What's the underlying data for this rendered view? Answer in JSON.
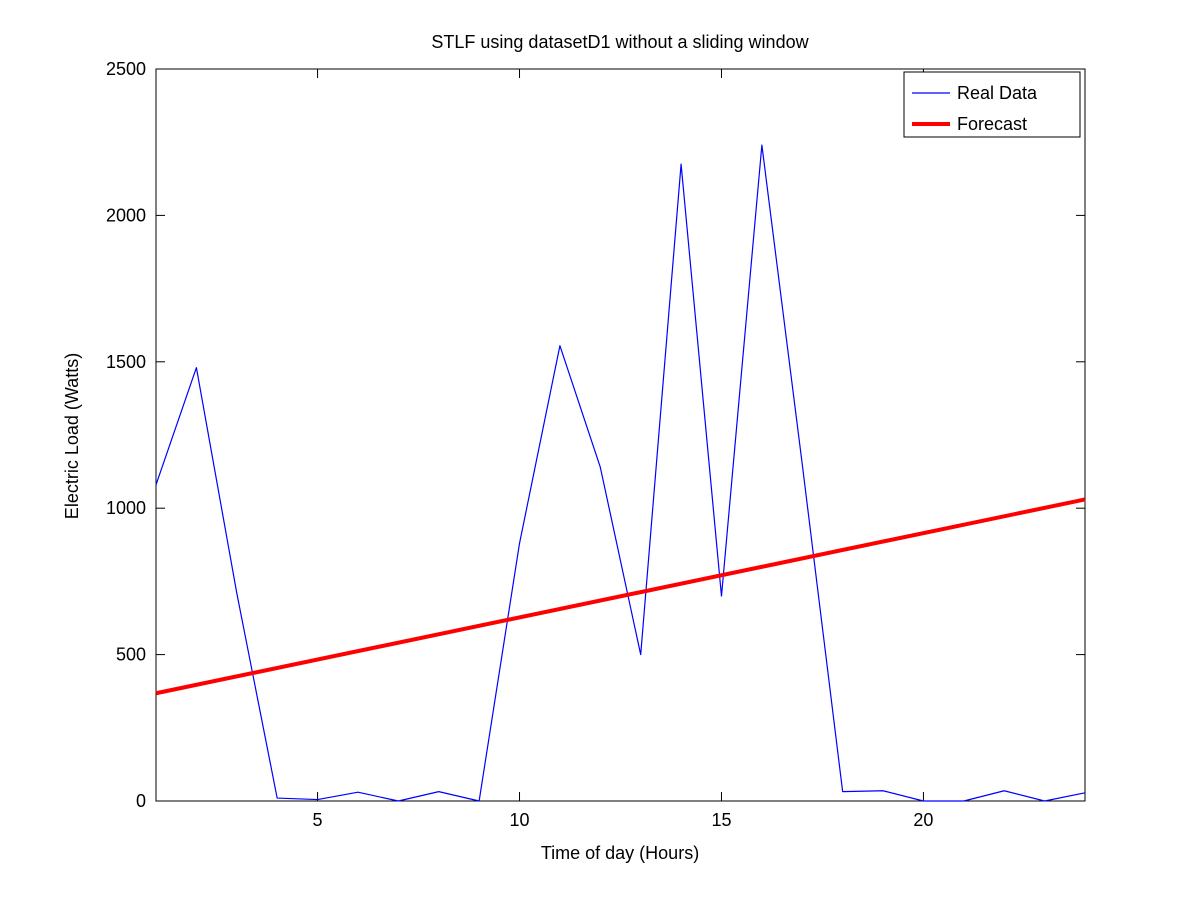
{
  "chart_data": {
    "type": "line",
    "title": "STLF using datasetD1 without a sliding window",
    "xlabel": "Time of day (Hours)",
    "ylabel": "Electric Load (Watts)",
    "xlim": [
      1,
      24
    ],
    "ylim": [
      0,
      2500
    ],
    "xticks": [
      5,
      10,
      15,
      20
    ],
    "yticks": [
      0,
      500,
      1000,
      1500,
      2000,
      2500
    ],
    "grid": false,
    "legend_position": "top-right",
    "series": [
      {
        "name": "Real Data",
        "color": "#0000ff",
        "style": "thin",
        "x": [
          1,
          2,
          3,
          4,
          5,
          6,
          7,
          8,
          9,
          10,
          11,
          12,
          13,
          14,
          15,
          16,
          17,
          18,
          19,
          20,
          21,
          22,
          23,
          24
        ],
        "y": [
          1080,
          1480,
          710,
          10,
          5,
          30,
          0,
          32,
          0,
          880,
          1555,
          1140,
          500,
          2175,
          700,
          2240,
          1150,
          32,
          35,
          0,
          0,
          35,
          0,
          28
        ]
      },
      {
        "name": "Forecast",
        "color": "#ff0000",
        "style": "thick",
        "x": [
          1,
          24
        ],
        "y": [
          368,
          1030
        ]
      }
    ]
  }
}
